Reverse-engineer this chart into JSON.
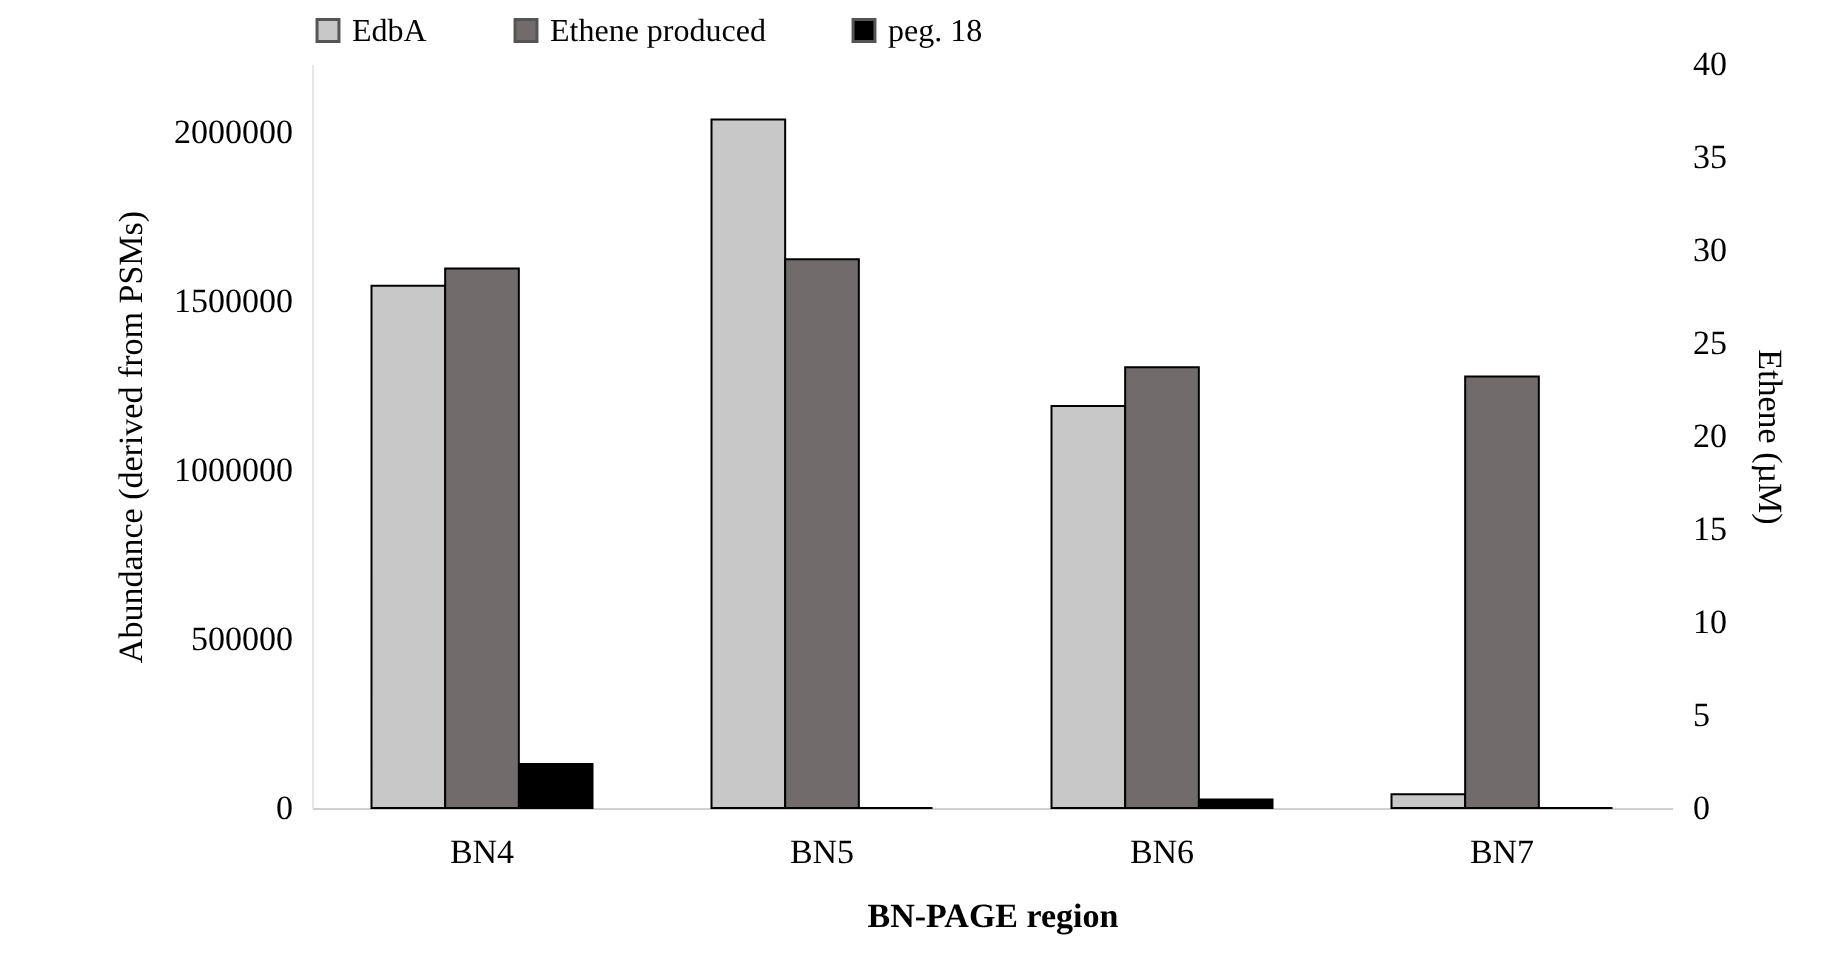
{
  "chart_data": {
    "type": "bar",
    "xlabel": "BN-PAGE region",
    "ylabel": "Abundance (derived from PSMs)",
    "y2label": "Ethene (µM)",
    "categories": [
      "BN4",
      "BN5",
      "BN6",
      "BN7"
    ],
    "series": [
      {
        "name": "EdbA",
        "color": "#c8c8c8",
        "values": [
          1544000,
          2036000,
          1189000,
          41000
        ]
      },
      {
        "name": "Ethene produced",
        "color": "#716b6b",
        "axis": "y2",
        "values": [
          29.0,
          29.5,
          23.7,
          23.2
        ]
      },
      {
        "name": "peg. 18",
        "color": "#000000",
        "values": [
          130000,
          0,
          25000,
          0
        ]
      }
    ],
    "ylim": [
      0,
      2200000
    ],
    "yticks": [
      0,
      500000,
      1000000,
      1500000,
      2000000
    ],
    "y2lim": [
      0,
      40
    ],
    "y2ticks": [
      0,
      5,
      10,
      15,
      20,
      25,
      30,
      35,
      40
    ],
    "grid": false,
    "legend": "top"
  }
}
